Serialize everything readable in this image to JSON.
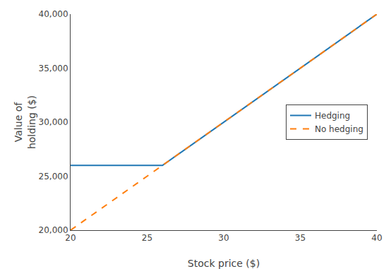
{
  "chart_data": {
    "type": "line",
    "xlabel": "Stock price ($)",
    "ylabel": "Value of\nholding ($)",
    "series": [
      {
        "name": "Hedging",
        "x": [
          20,
          26.0,
          40
        ],
        "values": [
          26000,
          26000,
          40000
        ],
        "line_style": "solid"
      },
      {
        "name": "No hedging",
        "x": [
          20,
          40
        ],
        "values": [
          20000,
          40000
        ],
        "line_style": "dashed"
      }
    ],
    "xlim": [
      20,
      40
    ],
    "ylim": [
      20000,
      40000
    ],
    "xticks": [
      20,
      25,
      30,
      35,
      40
    ],
    "yticks": [
      {
        "value": 20000,
        "label": "20,000"
      },
      {
        "value": 25000,
        "label": "25,000"
      },
      {
        "value": 30000,
        "label": "30,000"
      },
      {
        "value": 35000,
        "label": "35,000"
      },
      {
        "value": 40000,
        "label": "40,000"
      }
    ],
    "grid": false,
    "legend": "right"
  }
}
